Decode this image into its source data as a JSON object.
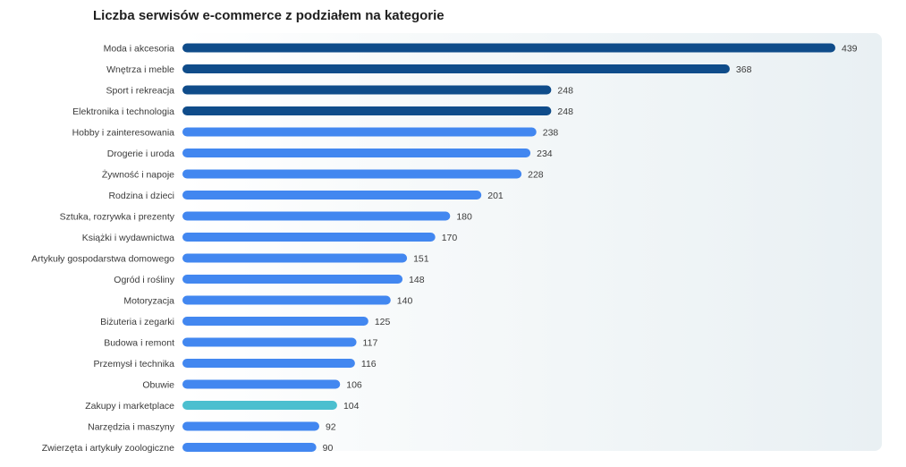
{
  "chart_data": {
    "type": "bar",
    "orientation": "horizontal",
    "title": "Liczba serwisów e-commerce z podziałem na kategorie",
    "categories": [
      "Moda i akcesoria",
      "Wnętrza i meble",
      "Sport i rekreacja",
      "Elektronika i technologia",
      "Hobby i zainteresowania",
      "Drogerie i uroda",
      "Żywność i napoje",
      "Rodzina i dzieci",
      "Sztuka, rozrywka i prezenty",
      "Książki i wydawnictwa",
      "Artykuły gospodarstwa domowego",
      "Ogród i rośliny",
      "Motoryzacja",
      "Biżuteria i zegarki",
      "Budowa i remont",
      "Przemysł i technika",
      "Obuwie",
      "Zakupy i marketplace",
      "Narzędzia i maszyny",
      "Zwierzęta i artykuły zoologiczne"
    ],
    "values": [
      439,
      368,
      248,
      248,
      238,
      234,
      228,
      201,
      180,
      170,
      151,
      148,
      140,
      125,
      117,
      116,
      106,
      104,
      92,
      90
    ],
    "colors": [
      "#0f4c8a",
      "#0f4c8a",
      "#0f4c8a",
      "#0f4c8a",
      "#4287f0",
      "#4287f0",
      "#4287f0",
      "#4287f0",
      "#4287f0",
      "#4287f0",
      "#4287f0",
      "#4287f0",
      "#4287f0",
      "#4287f0",
      "#4287f0",
      "#4287f0",
      "#4287f0",
      "#4bbfcf",
      "#4287f0",
      "#4287f0"
    ],
    "xlim": [
      0,
      439
    ],
    "data_labels": true,
    "grid": false,
    "legend": "none"
  }
}
